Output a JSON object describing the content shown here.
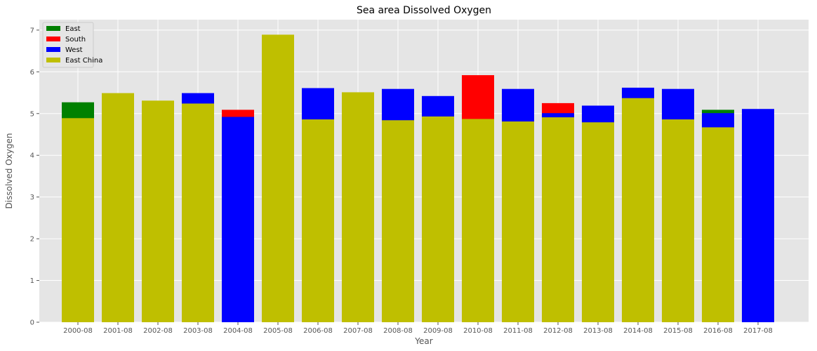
{
  "chart_data": {
    "type": "bar",
    "stacked": "overlay",
    "title": "Sea area Dissolved Oxygen",
    "xlabel": "Year",
    "ylabel": "Dissolved Oxygen",
    "ylim": [
      0,
      7.25
    ],
    "yticks": [
      0,
      1,
      2,
      3,
      4,
      5,
      6,
      7
    ],
    "grid": true,
    "legend_position": "top-left",
    "categories": [
      "2000-08",
      "2001-08",
      "2002-08",
      "2003-08",
      "2004-08",
      "2005-08",
      "2006-08",
      "2007-08",
      "2008-08",
      "2009-08",
      "2010-08",
      "2011-08",
      "2012-08",
      "2013-08",
      "2014-08",
      "2015-08",
      "2016-08",
      "2017-08"
    ],
    "series": [
      {
        "name": "East",
        "color": "#008000",
        "values": [
          5.27,
          null,
          null,
          null,
          null,
          null,
          null,
          null,
          null,
          null,
          null,
          null,
          null,
          null,
          null,
          null,
          5.09,
          null
        ]
      },
      {
        "name": "South",
        "color": "#ff0000",
        "values": [
          null,
          null,
          null,
          null,
          5.09,
          null,
          null,
          null,
          null,
          null,
          5.92,
          null,
          5.25,
          null,
          null,
          null,
          null,
          null
        ]
      },
      {
        "name": "West",
        "color": "#0000ff",
        "values": [
          null,
          null,
          null,
          5.49,
          4.92,
          null,
          5.61,
          null,
          5.59,
          5.42,
          null,
          5.59,
          5.01,
          5.19,
          5.62,
          5.59,
          5.01,
          5.11
        ]
      },
      {
        "name": "East China",
        "color": "#bfbf00",
        "values": [
          4.89,
          5.49,
          5.31,
          5.24,
          null,
          6.89,
          4.86,
          5.51,
          4.84,
          4.93,
          4.87,
          4.81,
          4.91,
          4.79,
          5.37,
          4.86,
          4.67,
          null
        ]
      }
    ]
  }
}
